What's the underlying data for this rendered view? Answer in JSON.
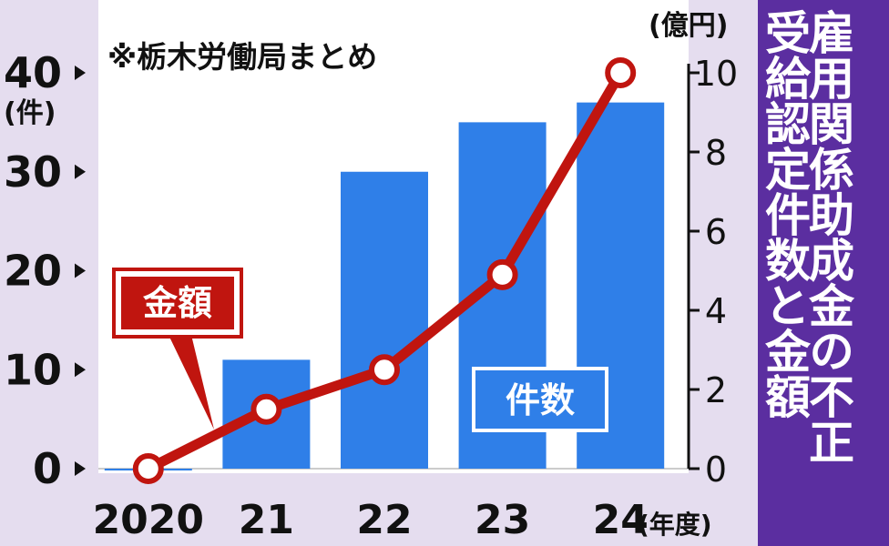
{
  "chart_data": {
    "type": "bar+line",
    "categories": [
      "2020",
      "21",
      "22",
      "23",
      "24"
    ],
    "series": [
      {
        "name": "件数",
        "type": "bar",
        "axis": "left",
        "values": [
          0,
          11,
          30,
          35,
          37
        ],
        "color": "#2f7fe8"
      },
      {
        "name": "金額",
        "type": "line",
        "axis": "right",
        "values": [
          0,
          1.5,
          2.5,
          4.9,
          10
        ],
        "color": "#c0150f"
      }
    ],
    "left_axis": {
      "unit": "(件)",
      "ticks": [
        "0",
        "10",
        "20",
        "30",
        "40"
      ],
      "ylim": [
        0,
        40
      ]
    },
    "right_axis": {
      "unit": "(億円)",
      "ticks": [
        "0",
        "2",
        "4",
        "6",
        "8",
        "10"
      ],
      "ylim": [
        0,
        10
      ]
    },
    "x_unit": "(年度)",
    "source_note": "※栃木労働局まとめ",
    "title_lines": [
      "雇用関係助成金の不正",
      "受給認定件数と金額"
    ]
  },
  "colors": {
    "background": "#e5ddef",
    "plot": "#ffffff",
    "bar": "#2f7fe8",
    "line": "#c0150f",
    "panel": "#5b2ea0"
  }
}
